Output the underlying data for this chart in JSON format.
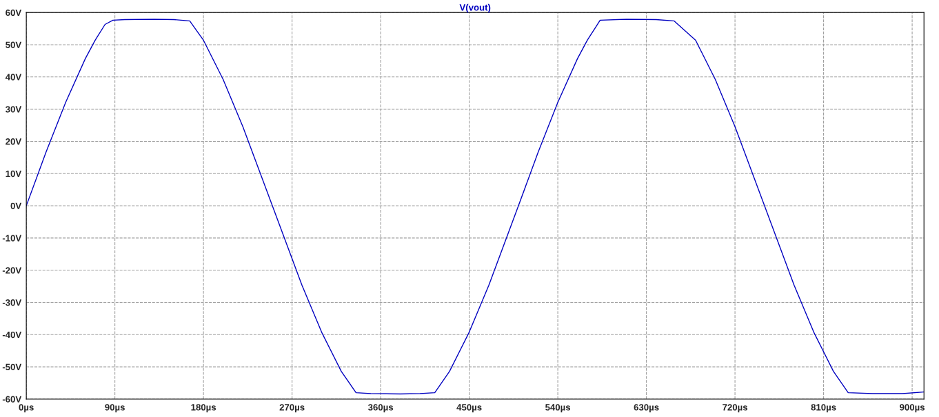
{
  "chart_data": {
    "type": "line",
    "title": "V(vout)",
    "x": [
      0,
      20,
      40,
      60,
      70,
      80,
      88,
      100,
      130,
      150,
      166,
      180,
      200,
      220,
      250,
      280,
      300,
      320,
      335,
      350,
      380,
      400,
      415,
      430,
      450,
      470,
      500,
      520,
      540,
      560,
      570,
      583,
      610,
      640,
      658,
      680,
      700,
      720,
      750,
      780,
      800,
      820,
      835,
      860,
      890,
      912
    ],
    "series": [
      {
        "color": "#0000c0",
        "values": [
          0,
          16.6,
          32.1,
          45.7,
          51.4,
          56.3,
          57.6,
          57.8,
          57.9,
          57.8,
          57.4,
          51.4,
          39.2,
          24.6,
          0,
          -24.6,
          -39.2,
          -51.4,
          -58.0,
          -58.3,
          -58.4,
          -58.3,
          -58.0,
          -51.4,
          -39.2,
          -24.6,
          0,
          16.6,
          32.1,
          45.7,
          51.4,
          57.6,
          57.9,
          57.8,
          57.4,
          51.4,
          39.2,
          24.6,
          0,
          -24.6,
          -39.2,
          -51.4,
          -58.0,
          -58.3,
          -58.3,
          -57.8
        ]
      }
    ],
    "xlim": [
      0,
      912
    ],
    "ylim": [
      -60,
      60
    ],
    "xticks": [
      {
        "value": 0,
        "label": "0µs"
      },
      {
        "value": 90,
        "label": "90µs"
      },
      {
        "value": 180,
        "label": "180µs"
      },
      {
        "value": 270,
        "label": "270µs"
      },
      {
        "value": 360,
        "label": "360µs"
      },
      {
        "value": 450,
        "label": "450µs"
      },
      {
        "value": 540,
        "label": "540µs"
      },
      {
        "value": 630,
        "label": "630µs"
      },
      {
        "value": 720,
        "label": "720µs"
      },
      {
        "value": 810,
        "label": "810µs"
      },
      {
        "value": 900,
        "label": "900µs"
      }
    ],
    "yticks": [
      {
        "value": -60,
        "label": "-60V"
      },
      {
        "value": -50,
        "label": "-50V"
      },
      {
        "value": -40,
        "label": "-40V"
      },
      {
        "value": -30,
        "label": "-30V"
      },
      {
        "value": -20,
        "label": "-20V"
      },
      {
        "value": -10,
        "label": "-10V"
      },
      {
        "value": 0,
        "label": "0V"
      },
      {
        "value": 10,
        "label": "10V"
      },
      {
        "value": 20,
        "label": "20V"
      },
      {
        "value": 30,
        "label": "30V"
      },
      {
        "value": 40,
        "label": "40V"
      },
      {
        "value": 50,
        "label": "50V"
      },
      {
        "value": 60,
        "label": "60V"
      }
    ],
    "grid": true,
    "line_style": "solid",
    "marker": "none"
  }
}
